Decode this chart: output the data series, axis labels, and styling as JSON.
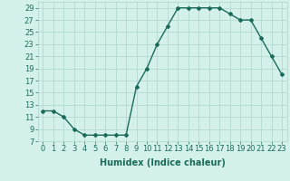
{
  "x": [
    0,
    1,
    2,
    3,
    4,
    5,
    6,
    7,
    8,
    9,
    10,
    11,
    12,
    13,
    14,
    15,
    16,
    17,
    18,
    19,
    20,
    21,
    22,
    23
  ],
  "y": [
    12,
    12,
    11,
    9,
    8,
    8,
    8,
    8,
    8,
    16,
    19,
    23,
    26,
    29,
    29,
    29,
    29,
    29,
    28,
    27,
    27,
    24,
    21,
    18
  ],
  "line_color": "#1a6b5a",
  "marker": "D",
  "marker_size": 2.0,
  "bg_color": "#d4f0eb",
  "grid_color": "#aed4cc",
  "xlabel": "Humidex (Indice chaleur)",
  "xlim": [
    -0.5,
    23.5
  ],
  "ylim": [
    7,
    30
  ],
  "yticks": [
    7,
    9,
    11,
    13,
    15,
    17,
    19,
    21,
    23,
    25,
    27,
    29
  ],
  "xticks": [
    0,
    1,
    2,
    3,
    4,
    5,
    6,
    7,
    8,
    9,
    10,
    11,
    12,
    13,
    14,
    15,
    16,
    17,
    18,
    19,
    20,
    21,
    22,
    23
  ],
  "xlabel_fontsize": 7.0,
  "tick_fontsize": 6.0,
  "line_width": 1.0
}
